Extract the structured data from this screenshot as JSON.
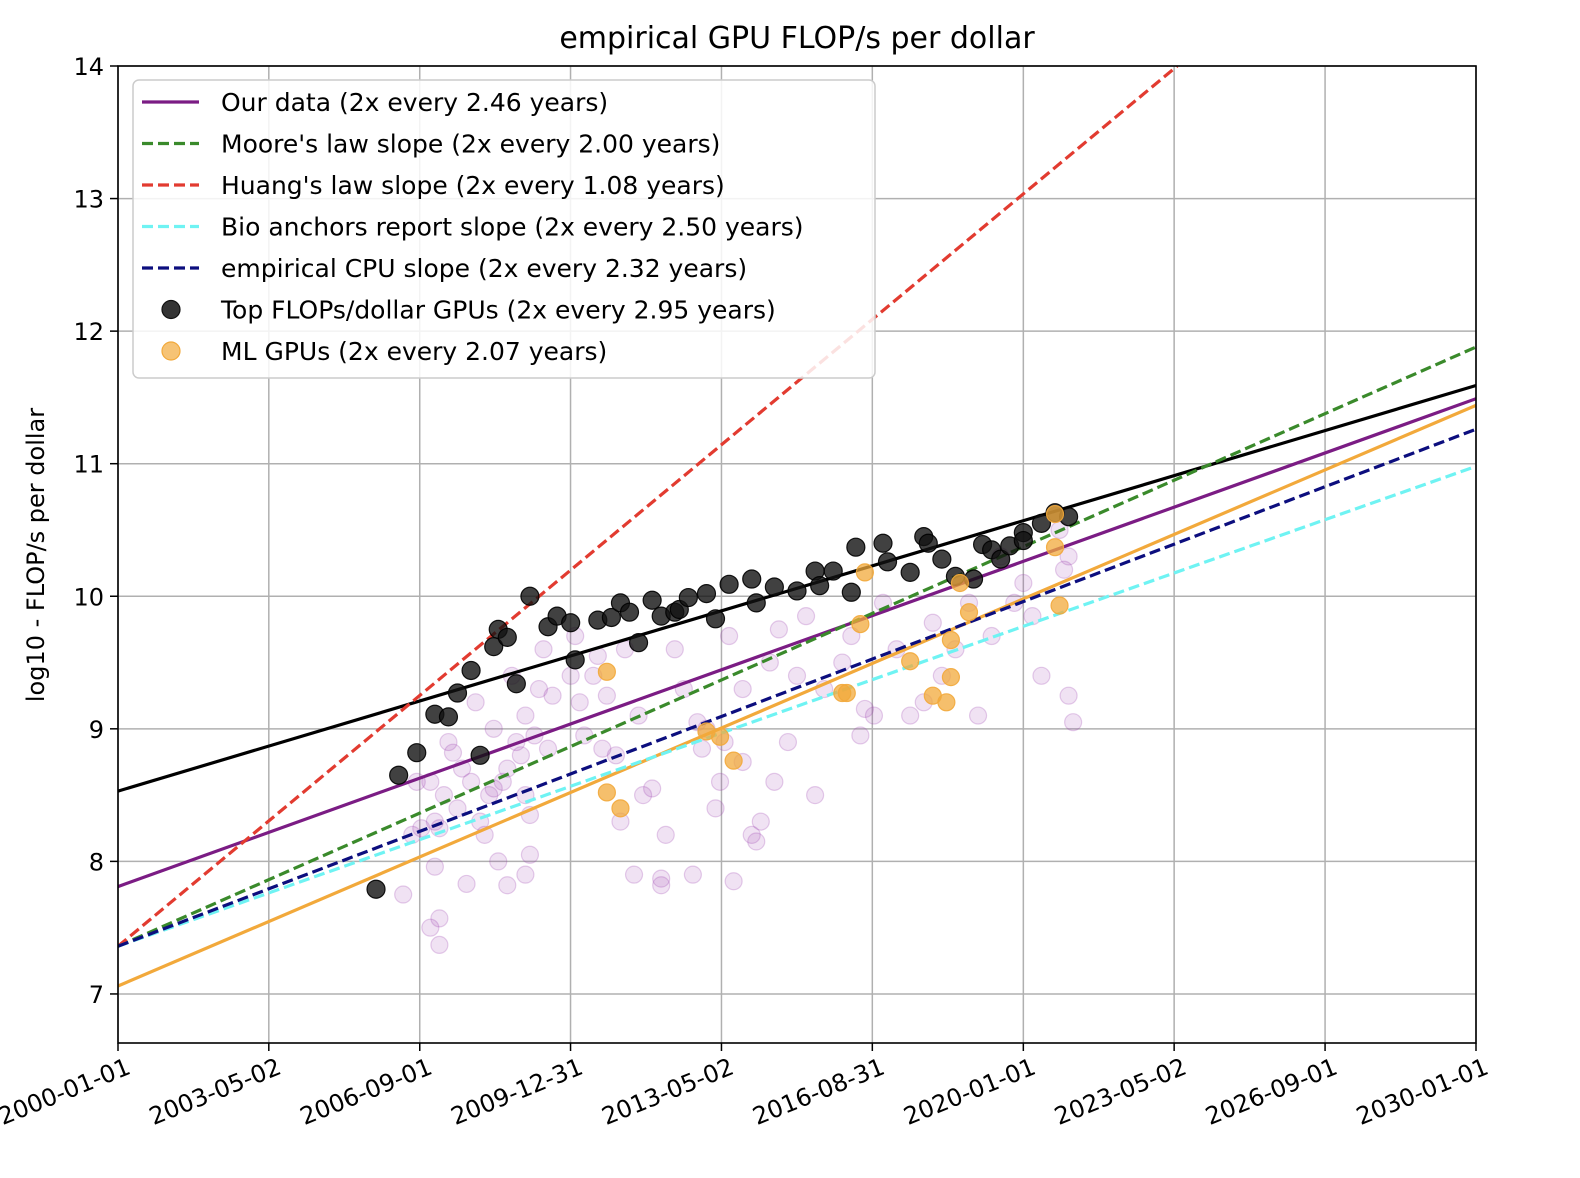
{
  "chart_data": {
    "type": "scatter",
    "title": "empirical GPU FLOP/s per dollar",
    "ylabel": "log10 - FLOP/s per dollar",
    "xlabel": "",
    "x_range": [
      "2000-01-01",
      "2030-01-01"
    ],
    "ylim": [
      6.63,
      14
    ],
    "x_ticks": [
      "2000-01-01",
      "2003-05-02",
      "2006-09-01",
      "2009-12-31",
      "2013-05-02",
      "2016-08-31",
      "2020-01-01",
      "2023-05-02",
      "2026-09-01",
      "2030-01-01"
    ],
    "y_ticks": [
      7,
      8,
      9,
      10,
      11,
      12,
      13,
      14
    ],
    "grid": true,
    "legend_position": "top-left",
    "legend": [
      {
        "label": "Our data (2x every 2.46 years)",
        "kind": "line",
        "color": "#7b1c84"
      },
      {
        "label": "Moore's law slope (2x every 2.00 years)",
        "kind": "dashed",
        "color": "#3a8a2b"
      },
      {
        "label": "Huang's law slope (2x every 1.08 years)",
        "kind": "dashed",
        "color": "#e23b30"
      },
      {
        "label": "Bio anchors report slope (2x every 2.50 years)",
        "kind": "dashed",
        "color": "#6ff3f3"
      },
      {
        "label": "empirical CPU slope (2x every 2.32 years)",
        "kind": "dashed",
        "color": "#0c0e7e"
      },
      {
        "label": "Top FLOPs/dollar GPUs (2x every 2.95 years)",
        "kind": "marker",
        "color": "#111111"
      },
      {
        "label": "ML GPUs (2x every 2.07 years)",
        "kind": "marker",
        "color": "#f2a93b"
      }
    ],
    "lines": [
      {
        "name": "Top FLOPs/dollar GPUs fit",
        "color": "#000000",
        "style": "solid",
        "points": [
          [
            2000.0,
            8.53
          ],
          [
            2030.0,
            11.59
          ]
        ]
      },
      {
        "name": "Our data",
        "color": "#7b1c84",
        "style": "solid",
        "points": [
          [
            2000.0,
            7.81
          ],
          [
            2030.0,
            11.49
          ]
        ]
      },
      {
        "name": "ML GPUs fit",
        "color": "#f2a93b",
        "style": "solid",
        "points": [
          [
            2000.0,
            7.06
          ],
          [
            2030.0,
            11.44
          ]
        ]
      },
      {
        "name": "Moore's law slope",
        "color": "#3a8a2b",
        "style": "dashed",
        "points": [
          [
            2000.0,
            7.36
          ],
          [
            2030.0,
            11.88
          ]
        ]
      },
      {
        "name": "Huang's law slope",
        "color": "#e23b30",
        "style": "dashed",
        "points": [
          [
            2000.0,
            7.36
          ],
          [
            2023.4,
            14.0
          ]
        ]
      },
      {
        "name": "Bio anchors report slope",
        "color": "#6ff3f3",
        "style": "dashed",
        "points": [
          [
            2000.0,
            7.36
          ],
          [
            2030.0,
            10.98
          ]
        ]
      },
      {
        "name": "empirical CPU slope",
        "color": "#0c0e7e",
        "style": "dashed",
        "points": [
          [
            2000.0,
            7.36
          ],
          [
            2030.0,
            11.26
          ]
        ]
      }
    ],
    "series": [
      {
        "name": "All GPUs",
        "color": "#9b3fae",
        "points": [
          [
            2006.3,
            7.75
          ],
          [
            2006.5,
            8.2
          ],
          [
            2006.6,
            8.6
          ],
          [
            2006.7,
            8.25
          ],
          [
            2006.9,
            7.5
          ],
          [
            2006.9,
            8.6
          ],
          [
            2007.0,
            7.96
          ],
          [
            2007.0,
            8.3
          ],
          [
            2007.1,
            7.37
          ],
          [
            2007.1,
            7.57
          ],
          [
            2007.1,
            8.25
          ],
          [
            2007.2,
            8.5
          ],
          [
            2007.3,
            8.9
          ],
          [
            2007.4,
            8.82
          ],
          [
            2007.5,
            8.4
          ],
          [
            2007.6,
            8.7
          ],
          [
            2007.7,
            7.83
          ],
          [
            2007.8,
            8.6
          ],
          [
            2007.9,
            9.2
          ],
          [
            2008.0,
            8.3
          ],
          [
            2008.1,
            8.2
          ],
          [
            2008.2,
            8.5
          ],
          [
            2008.3,
            9.0
          ],
          [
            2008.3,
            8.55
          ],
          [
            2008.4,
            8.0
          ],
          [
            2008.5,
            8.6
          ],
          [
            2008.6,
            7.82
          ],
          [
            2008.6,
            8.7
          ],
          [
            2008.7,
            9.4
          ],
          [
            2008.8,
            8.9
          ],
          [
            2008.9,
            8.8
          ],
          [
            2009.0,
            7.9
          ],
          [
            2009.0,
            9.1
          ],
          [
            2009.0,
            8.5
          ],
          [
            2009.1,
            8.05
          ],
          [
            2009.1,
            8.35
          ],
          [
            2009.2,
            8.95
          ],
          [
            2009.3,
            9.3
          ],
          [
            2009.4,
            9.6
          ],
          [
            2009.5,
            8.85
          ],
          [
            2009.6,
            9.25
          ],
          [
            2010.0,
            9.4
          ],
          [
            2010.1,
            9.7
          ],
          [
            2010.2,
            9.2
          ],
          [
            2010.3,
            8.95
          ],
          [
            2010.5,
            9.4
          ],
          [
            2010.6,
            9.55
          ],
          [
            2010.7,
            8.85
          ],
          [
            2010.8,
            9.25
          ],
          [
            2011.0,
            8.8
          ],
          [
            2011.1,
            8.3
          ],
          [
            2011.2,
            9.6
          ],
          [
            2011.4,
            7.9
          ],
          [
            2011.5,
            9.1
          ],
          [
            2011.6,
            8.5
          ],
          [
            2011.8,
            8.55
          ],
          [
            2012.0,
            7.87
          ],
          [
            2012.0,
            7.82
          ],
          [
            2012.1,
            8.2
          ],
          [
            2012.3,
            9.6
          ],
          [
            2012.5,
            9.3
          ],
          [
            2012.7,
            7.9
          ],
          [
            2012.8,
            9.05
          ],
          [
            2012.9,
            8.85
          ],
          [
            2013.0,
            9.0
          ],
          [
            2013.2,
            8.4
          ],
          [
            2013.3,
            8.6
          ],
          [
            2013.4,
            8.9
          ],
          [
            2013.5,
            9.7
          ],
          [
            2013.6,
            7.85
          ],
          [
            2013.8,
            9.3
          ],
          [
            2014.0,
            8.2
          ],
          [
            2014.1,
            8.15
          ],
          [
            2014.2,
            8.3
          ],
          [
            2014.4,
            9.5
          ],
          [
            2014.5,
            8.6
          ],
          [
            2014.6,
            9.75
          ],
          [
            2014.8,
            8.9
          ],
          [
            2015.0,
            9.4
          ],
          [
            2015.2,
            9.85
          ],
          [
            2015.4,
            8.5
          ],
          [
            2015.6,
            9.3
          ],
          [
            2016.0,
            9.5
          ],
          [
            2016.2,
            9.7
          ],
          [
            2016.4,
            8.95
          ],
          [
            2016.5,
            9.15
          ],
          [
            2016.7,
            9.1
          ],
          [
            2016.9,
            9.95
          ],
          [
            2017.2,
            9.6
          ],
          [
            2017.5,
            9.1
          ],
          [
            2017.8,
            9.2
          ],
          [
            2018.0,
            9.8
          ],
          [
            2018.2,
            9.4
          ],
          [
            2018.5,
            9.6
          ],
          [
            2018.8,
            9.95
          ],
          [
            2019.0,
            9.1
          ],
          [
            2019.3,
            9.7
          ],
          [
            2019.5,
            10.3
          ],
          [
            2019.8,
            9.95
          ],
          [
            2020.0,
            10.1
          ],
          [
            2020.2,
            9.85
          ],
          [
            2020.4,
            9.4
          ],
          [
            2020.8,
            10.5
          ],
          [
            2020.9,
            10.2
          ],
          [
            2021.0,
            10.3
          ],
          [
            2021.0,
            9.25
          ],
          [
            2021.1,
            9.05
          ],
          [
            2013.8,
            8.75
          ]
        ]
      },
      {
        "name": "Top FLOPs/dollar GPUs",
        "color": "#111111",
        "points": [
          [
            2005.7,
            7.79
          ],
          [
            2006.2,
            8.65
          ],
          [
            2006.6,
            8.82
          ],
          [
            2007.0,
            9.11
          ],
          [
            2007.3,
            9.09
          ],
          [
            2007.5,
            9.27
          ],
          [
            2007.8,
            9.44
          ],
          [
            2008.0,
            8.8
          ],
          [
            2008.3,
            9.62
          ],
          [
            2008.4,
            9.75
          ],
          [
            2008.6,
            9.69
          ],
          [
            2008.8,
            9.34
          ],
          [
            2009.1,
            10.0
          ],
          [
            2009.5,
            9.77
          ],
          [
            2009.7,
            9.85
          ],
          [
            2010.0,
            9.8
          ],
          [
            2010.1,
            9.52
          ],
          [
            2010.6,
            9.82
          ],
          [
            2010.9,
            9.84
          ],
          [
            2011.1,
            9.95
          ],
          [
            2011.3,
            9.88
          ],
          [
            2011.5,
            9.65
          ],
          [
            2011.8,
            9.97
          ],
          [
            2012.0,
            9.85
          ],
          [
            2012.3,
            9.88
          ],
          [
            2012.4,
            9.9
          ],
          [
            2012.6,
            9.99
          ],
          [
            2013.0,
            10.02
          ],
          [
            2013.2,
            9.83
          ],
          [
            2013.5,
            10.09
          ],
          [
            2014.0,
            10.13
          ],
          [
            2014.1,
            9.95
          ],
          [
            2014.5,
            10.07
          ],
          [
            2015.0,
            10.04
          ],
          [
            2015.4,
            10.19
          ],
          [
            2015.5,
            10.08
          ],
          [
            2015.8,
            10.19
          ],
          [
            2016.2,
            10.03
          ],
          [
            2016.3,
            10.37
          ],
          [
            2016.9,
            10.4
          ],
          [
            2017.0,
            10.26
          ],
          [
            2017.5,
            10.18
          ],
          [
            2017.8,
            10.45
          ],
          [
            2017.9,
            10.4
          ],
          [
            2018.2,
            10.28
          ],
          [
            2018.5,
            10.15
          ],
          [
            2018.9,
            10.13
          ],
          [
            2019.1,
            10.39
          ],
          [
            2019.3,
            10.35
          ],
          [
            2019.5,
            10.28
          ],
          [
            2019.7,
            10.38
          ],
          [
            2020.0,
            10.48
          ],
          [
            2020.0,
            10.42
          ],
          [
            2020.4,
            10.55
          ],
          [
            2020.7,
            10.63
          ],
          [
            2021.0,
            10.6
          ]
        ]
      },
      {
        "name": "ML GPUs",
        "color": "#f2a93b",
        "points": [
          [
            2010.8,
            9.43
          ],
          [
            2010.8,
            8.52
          ],
          [
            2011.1,
            8.4
          ],
          [
            2013.0,
            8.98
          ],
          [
            2013.3,
            8.94
          ],
          [
            2013.6,
            8.76
          ],
          [
            2016.0,
            9.27
          ],
          [
            2016.1,
            9.27
          ],
          [
            2016.4,
            9.79
          ],
          [
            2016.5,
            10.18
          ],
          [
            2017.5,
            9.51
          ],
          [
            2018.0,
            9.25
          ],
          [
            2018.3,
            9.2
          ],
          [
            2018.4,
            9.39
          ],
          [
            2018.4,
            9.67
          ],
          [
            2018.6,
            10.1
          ],
          [
            2018.8,
            9.88
          ],
          [
            2020.7,
            10.37
          ],
          [
            2020.8,
            9.93
          ],
          [
            2020.7,
            10.62
          ]
        ]
      }
    ]
  }
}
